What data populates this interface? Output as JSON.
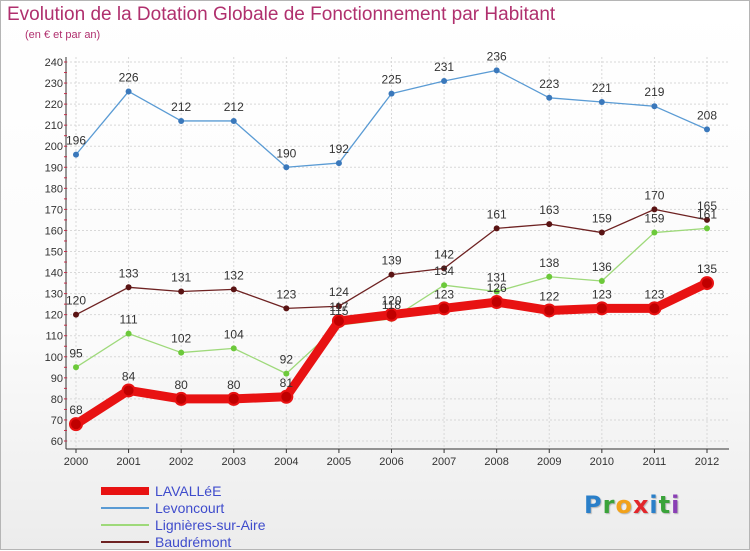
{
  "header": {
    "title": "Evolution de la Dotation Globale de Fonctionnement par Habitant",
    "subtitle": "(en € et par an)",
    "title_color": "#b0306e"
  },
  "logo": {
    "text": "Proxiti",
    "letters": [
      {
        "ch": "P",
        "color": "#2a7fc9"
      },
      {
        "ch": "r",
        "color": "#3aa33a"
      },
      {
        "ch": "o",
        "color": "#f2a21b"
      },
      {
        "ch": "x",
        "color": "#e2262a"
      },
      {
        "ch": "i",
        "color": "#2a7fc9"
      },
      {
        "ch": "t",
        "color": "#3aa33a"
      },
      {
        "ch": "i",
        "color": "#8a3fb5"
      }
    ]
  },
  "chart_data": {
    "type": "line",
    "x": [
      "2000",
      "2001",
      "2002",
      "2003",
      "2004",
      "2005",
      "2006",
      "2007",
      "2008",
      "2009",
      "2010",
      "2011",
      "2012"
    ],
    "ylim": [
      60,
      240
    ],
    "yticks": [
      60,
      70,
      80,
      90,
      100,
      110,
      120,
      130,
      140,
      150,
      160,
      170,
      180,
      190,
      200,
      210,
      220,
      230,
      240
    ],
    "grid": true,
    "legend_position": "bottom-left",
    "series": [
      {
        "name": "LAVALLéE",
        "color": "#e81212",
        "marker_color": "#c00000",
        "values": [
          68,
          84,
          80,
          80,
          81,
          117,
          120,
          123,
          126,
          122,
          123,
          123,
          135
        ],
        "labels": [
          "68",
          "84",
          "80",
          "80",
          "81",
          "117",
          "120",
          "123",
          "126",
          "122",
          "123",
          "123",
          "135"
        ],
        "emphasis": true
      },
      {
        "name": "Levoncourt",
        "color": "#5a9bd4",
        "marker_color": "#3a78bb",
        "values": [
          196,
          226,
          212,
          212,
          190,
          192,
          225,
          231,
          236,
          223,
          221,
          219,
          208
        ],
        "labels": [
          "196",
          "226",
          "212",
          "212",
          "190",
          "192",
          "225",
          "231",
          "236",
          "223",
          "221",
          "219",
          "208"
        ]
      },
      {
        "name": "Lignières-sur-Aire",
        "color": "#9ed97a",
        "marker_color": "#6cc93a",
        "values": [
          95,
          111,
          102,
          104,
          92,
          115,
          118,
          134,
          131,
          138,
          136,
          159,
          161
        ],
        "labels": [
          "95",
          "111",
          "102",
          "104",
          "92",
          "115",
          "118",
          "134",
          "131",
          "138",
          "136",
          "159",
          "161"
        ]
      },
      {
        "name": "Baudrémont",
        "color": "#6e2222",
        "marker_color": "#5a1414",
        "values": [
          120,
          133,
          131,
          132,
          123,
          124,
          139,
          142,
          161,
          163,
          159,
          170,
          165
        ],
        "labels": [
          "120",
          "133",
          "131",
          "132",
          "123",
          "124",
          "139",
          "142",
          "161",
          "163",
          "159",
          "170",
          "165"
        ]
      }
    ]
  }
}
